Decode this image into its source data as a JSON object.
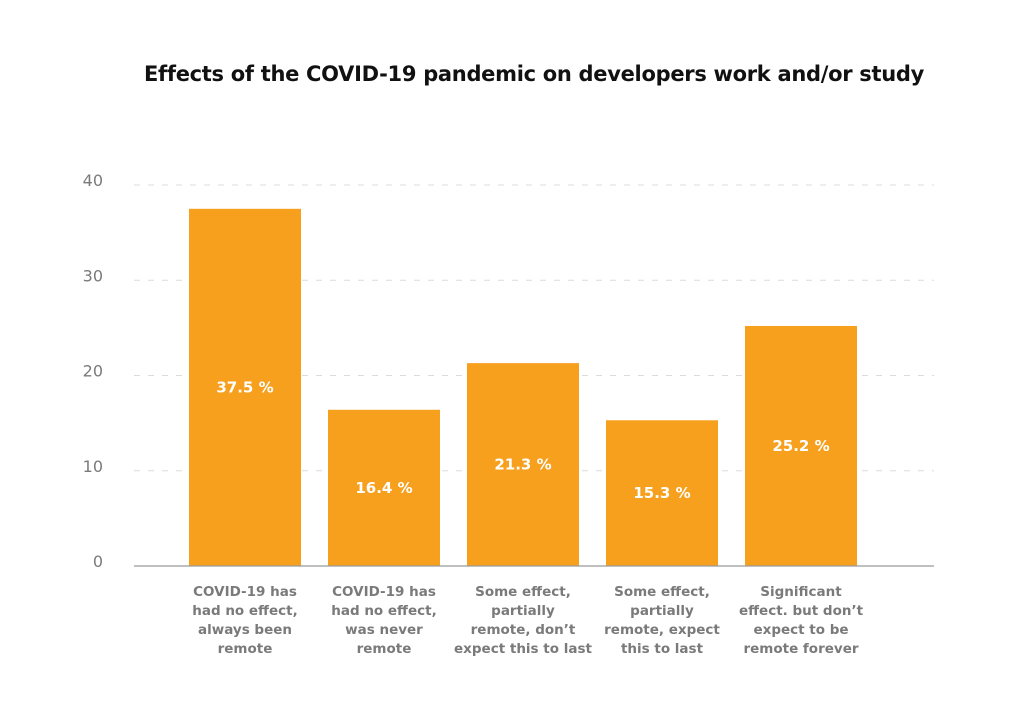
{
  "chart_data": {
    "type": "bar",
    "title": "Effects of the COVID-19 pandemic on developers work and/or study",
    "xlabel": "",
    "ylabel": "",
    "ylim": [
      0,
      40
    ],
    "yticks": [
      0,
      10,
      20,
      30,
      40
    ],
    "grid": true,
    "legend": "none",
    "bar_color": "#F7A01E",
    "categories": [
      [
        "COVID-19 has",
        "had no effect,",
        "always been",
        "remote"
      ],
      [
        "COVID-19 has",
        "had no effect,",
        "was never",
        "remote"
      ],
      [
        "Some effect,",
        "partially",
        "remote, don’t",
        "expect this to last"
      ],
      [
        "Some effect,",
        "partially",
        "remote, expect",
        "this to last"
      ],
      [
        "Significant",
        "effect. but don’t",
        "expect to be",
        "remote forever"
      ]
    ],
    "values": [
      37.5,
      16.4,
      21.3,
      15.3,
      25.2
    ],
    "value_labels": [
      "37.5 %",
      "16.4 %",
      "21.3 %",
      "15.3 %",
      "25.2 %"
    ]
  }
}
